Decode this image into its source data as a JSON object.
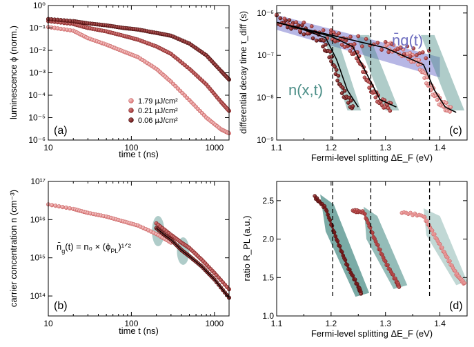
{
  "colors": {
    "light": "#e58f8f",
    "mid": "#b03f3f",
    "dark": "#6b1414",
    "teal": "#4d8f88",
    "purple": "#7b7bd0",
    "fit": "#000000"
  },
  "chart_data": [
    {
      "id": "a",
      "type": "scatter",
      "panel_label": "(a)",
      "xlabel": "time t (ns)",
      "ylabel": "luminescence ϕ (norm.)",
      "xscale": "log",
      "yscale": "log",
      "xlim": [
        10,
        1500
      ],
      "ylim": [
        1e-06,
        1
      ],
      "x_ticks": [
        "10",
        "100",
        "1000"
      ],
      "y_ticks": [
        "10⁻⁶",
        "10⁻⁵",
        "10⁻⁴",
        "10⁻³",
        "10⁻²",
        "10⁻¹",
        "10⁰"
      ],
      "legend_position": "lower-left-center",
      "series": [
        {
          "name": "1.79 µJ/cm²",
          "color": "light",
          "x": [
            10,
            20,
            30,
            50,
            80,
            120,
            200,
            300,
            500,
            800,
            1200,
            1500
          ],
          "y": [
            0.11,
            0.075,
            0.035,
            0.018,
            0.009,
            0.005,
            0.0015,
            0.0004,
            6e-05,
            1e-05,
            3e-06,
            2e-06
          ]
        },
        {
          "name": "0.21 µJ/cm²",
          "color": "mid",
          "x": [
            10,
            20,
            30,
            50,
            80,
            120,
            200,
            300,
            500,
            800,
            1200,
            1500
          ],
          "y": [
            0.2,
            0.15,
            0.1,
            0.07,
            0.045,
            0.03,
            0.015,
            0.007,
            0.0015,
            0.0003,
            5e-05,
            2e-05
          ]
        },
        {
          "name": "0.06 µJ/cm²",
          "color": "dark",
          "x": [
            10,
            20,
            30,
            50,
            80,
            120,
            200,
            300,
            500,
            800,
            1200,
            1500
          ],
          "y": [
            0.25,
            0.2,
            0.16,
            0.13,
            0.1,
            0.085,
            0.06,
            0.045,
            0.02,
            0.006,
            0.0012,
            0.0005
          ]
        }
      ]
    },
    {
      "id": "b",
      "type": "scatter",
      "panel_label": "(b)",
      "xlabel": "time t (ns)",
      "ylabel": "carrier concentration n (cm⁻³)",
      "xscale": "log",
      "yscale": "log",
      "xlim": [
        10,
        1500
      ],
      "ylim": [
        30000000000000.0,
        1e+17
      ],
      "x_ticks": [
        "10",
        "100",
        "1000"
      ],
      "y_ticks": [
        "10¹⁴",
        "10¹⁵",
        "10¹⁶",
        "10¹⁷"
      ],
      "annotation": {
        "lhs": "n̄",
        "sub": "g",
        "rhs": "(t) = n₀ × (ϕ",
        "sub2": "PL",
        "tail": ")¹ᐟ²"
      },
      "series": [
        {
          "name": "light",
          "color": "light",
          "x": [
            10,
            20,
            30,
            50,
            80,
            120,
            200,
            300
          ],
          "y": [
            2.5e+16,
            1.9e+16,
            1.5e+16,
            1.2e+16,
            9000000000000000.0,
            7000000000000000.0,
            4200000000000000.0,
            2500000000000000.0
          ]
        },
        {
          "name": "mid",
          "color": "mid",
          "x": [
            200,
            300,
            400,
            500,
            700,
            1000,
            1500
          ],
          "y": [
            8000000000000000.0,
            4000000000000000.0,
            2500000000000000.0,
            1800000000000000.0,
            900000000000000.0,
            400000000000000.0,
            150000000000000.0
          ]
        },
        {
          "name": "dark",
          "color": "dark",
          "x": [
            200,
            250,
            300,
            400,
            500,
            700,
            1000,
            1500
          ],
          "y": [
            6000000000000000.0,
            4000000000000000.0,
            3000000000000000.0,
            1600000000000000.0,
            1100000000000000.0,
            600000000000000.0,
            270000000000000.0,
            90000000000000.0
          ]
        }
      ]
    },
    {
      "id": "c",
      "type": "scatter",
      "panel_label": "(c)",
      "xlabel": "Fermi-level splitting ΔE_F (eV)",
      "ylabel": "differential decay time τ_diff (s)",
      "xscale": "linear",
      "yscale": "log",
      "xlim": [
        1.1,
        1.45
      ],
      "ylim": [
        1e-09,
        1.5e-06
      ],
      "x_ticks": [
        "1.1",
        "1.2",
        "1.3",
        "1.4"
      ],
      "y_ticks": [
        "10⁻⁹",
        "10⁻⁸",
        "10⁻⁷",
        "10⁻⁶"
      ],
      "dashed_lines_x": [
        1.203,
        1.273,
        1.381
      ],
      "annotations": {
        "ng_t": "n̄g(t)",
        "nxt": "n(x,t)"
      },
      "band_ng": {
        "x": [
          1.1,
          1.4
        ],
        "upper": [
          9e-07,
          9e-08
        ],
        "lower": [
          4e-07,
          3e-08
        ]
      },
      "fit_lines": [
        {
          "x": [
            1.1,
            1.15,
            1.19,
            1.21,
            1.23,
            1.25
          ],
          "y": [
            6e-07,
            4e-07,
            2.6e-07,
            8e-08,
            1.5e-08,
            6e-09
          ]
        },
        {
          "x": [
            1.1,
            1.2,
            1.24,
            1.26,
            1.29,
            1.32
          ],
          "y": [
            6e-07,
            2.8e-07,
            1.6e-07,
            5e-08,
            9e-09,
            6e-09
          ]
        },
        {
          "x": [
            1.1,
            1.3,
            1.37,
            1.39,
            1.41,
            1.43
          ],
          "y": [
            6e-07,
            1.5e-07,
            6e-08,
            1.5e-08,
            6e-09,
            4.5e-09
          ]
        }
      ],
      "series": [
        {
          "name": "light",
          "color": "light",
          "x": [
            1.3,
            1.33,
            1.36,
            1.38,
            1.4,
            1.42
          ],
          "y": [
            1.8e-07,
            1.2e-07,
            7e-08,
            2e-08,
            8e-09,
            5e-09
          ]
        },
        {
          "name": "mid",
          "color": "mid",
          "x": [
            1.2,
            1.23,
            1.25,
            1.27,
            1.29,
            1.31
          ],
          "y": [
            3e-07,
            1.8e-07,
            9e-08,
            2e-08,
            8e-09,
            6e-09
          ]
        },
        {
          "name": "dark",
          "color": "dark",
          "x": [
            1.1,
            1.14,
            1.18,
            1.2,
            1.22,
            1.24
          ],
          "y": [
            7e-07,
            4.5e-07,
            2.5e-07,
            9e-08,
            1.5e-08,
            6e-09
          ]
        }
      ]
    },
    {
      "id": "d",
      "type": "scatter",
      "panel_label": "(d)",
      "xlabel": "Fermi-level splitting ΔE_F (eV)",
      "ylabel": "ratio R_PL (a.u.)",
      "xscale": "linear",
      "yscale": "linear",
      "xlim": [
        1.1,
        1.45
      ],
      "ylim": [
        1.0,
        2.75
      ],
      "x_ticks": [
        "1.1",
        "1.2",
        "1.3",
        "1.4"
      ],
      "y_ticks": [
        "1.0",
        "1.5",
        "2.0",
        "2.5"
      ],
      "dashed_lines_x": [
        1.203,
        1.273,
        1.381
      ],
      "series": [
        {
          "name": "dark",
          "color": "dark",
          "x": [
            1.17,
            1.19,
            1.21,
            1.23,
            1.25,
            1.255
          ],
          "y": [
            2.55,
            2.4,
            2.0,
            1.65,
            1.38,
            1.3
          ]
        },
        {
          "name": "mid",
          "color": "mid",
          "x": [
            1.24,
            1.26,
            1.28,
            1.3,
            1.32,
            1.325
          ],
          "y": [
            2.37,
            2.35,
            2.0,
            1.7,
            1.45,
            1.38
          ]
        },
        {
          "name": "light",
          "color": "light",
          "x": [
            1.33,
            1.37,
            1.39,
            1.41,
            1.43,
            1.445
          ],
          "y": [
            2.35,
            2.3,
            2.05,
            1.8,
            1.55,
            1.42
          ]
        }
      ]
    }
  ]
}
